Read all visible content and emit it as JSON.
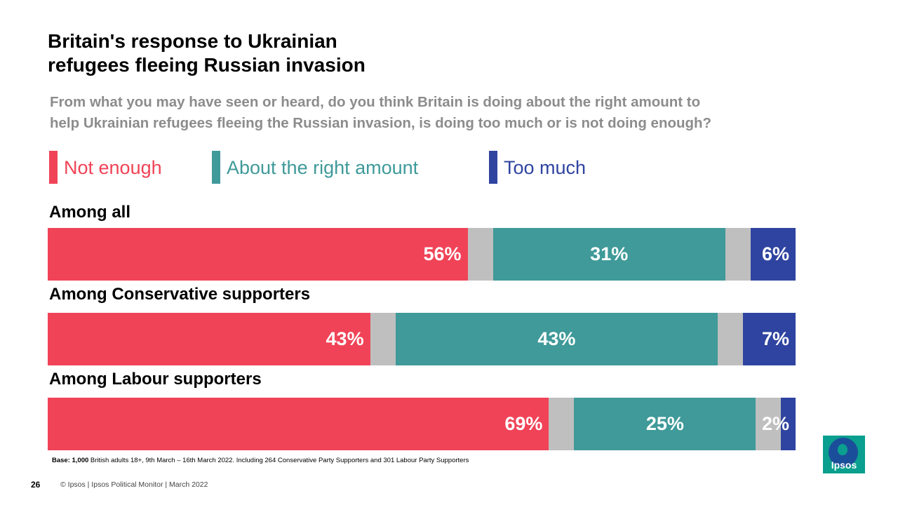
{
  "title_lines": [
    "Britain's response to Ukrainian",
    "refugees fleeing Russian invasion"
  ],
  "question_lines": [
    "From what you may have seen or heard, do you think Britain is doing about the right amount to",
    "help Ukrainian refugees fleeing the Russian invasion, is doing too much or is not doing enough?"
  ],
  "colors": {
    "not_enough": "#f04357",
    "right_amount": "#3f9a99",
    "too_much": "#2f44a0",
    "gap": "#bfbfbf"
  },
  "chart_data": {
    "type": "bar",
    "orientation": "horizontal-stacked",
    "categories": [
      "Among all",
      "Among Conservative supporters",
      "Among Labour supporters"
    ],
    "series": [
      {
        "name": "Not enough",
        "values": [
          56,
          43,
          69
        ],
        "labels": [
          "56%",
          "43%",
          "69%"
        ]
      },
      {
        "name": "About the right amount",
        "values": [
          31,
          43,
          25
        ],
        "labels": [
          "31%",
          "43%",
          "25%"
        ]
      },
      {
        "name": "Too much",
        "values": [
          6,
          7,
          2
        ],
        "labels": [
          "6%",
          "7%",
          "2%"
        ]
      }
    ],
    "remainder_color": "#bfbfbf",
    "xlim": [
      0,
      100
    ],
    "legend_placement": "top"
  },
  "base_note_bold": "Base: 1,000",
  "base_note": " British adults 18+, 9th March –  16th March 2022. Including 264 Conservative Party Supporters and 301 Labour Party Supporters",
  "page_number": "26",
  "footer": "© Ipsos | Ipsos  Political Monitor | March 2022",
  "logo_text": "Ipsos"
}
